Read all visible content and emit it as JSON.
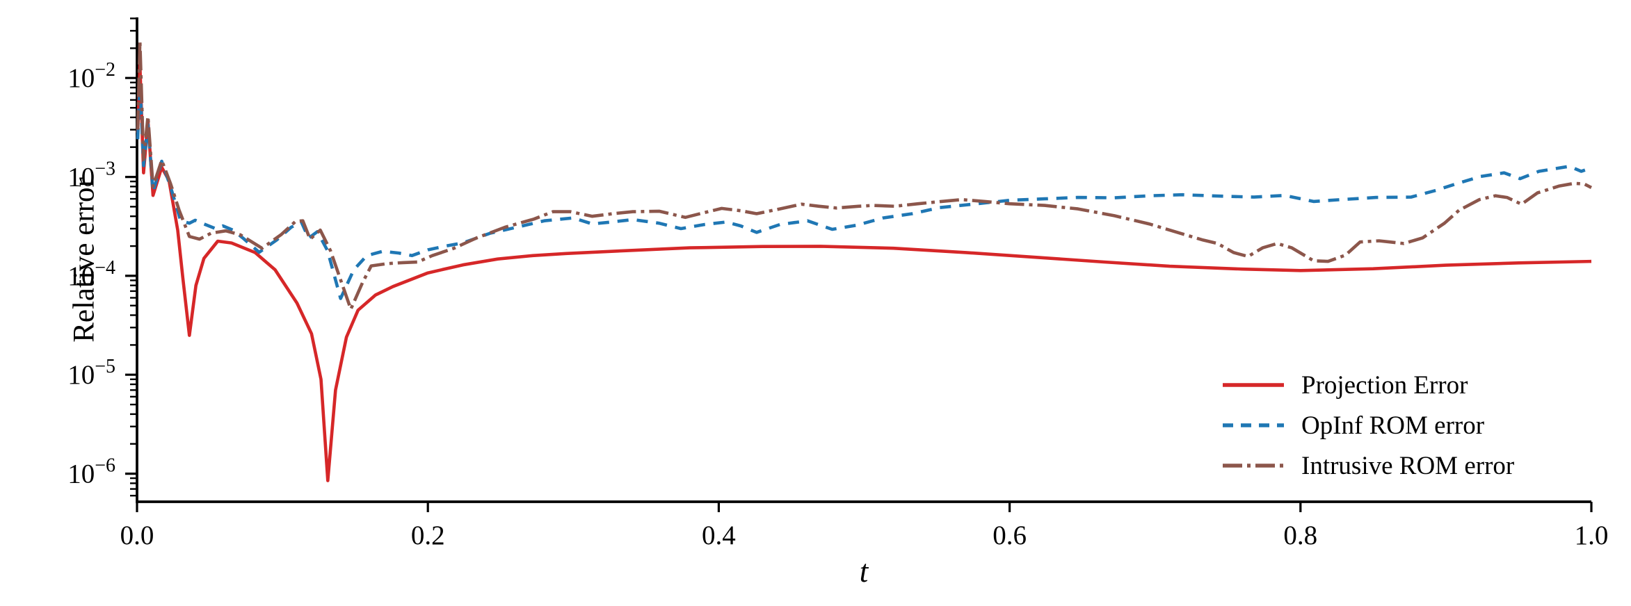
{
  "figure": {
    "background": "#ffffff"
  },
  "chart_data": {
    "type": "line",
    "title": "",
    "xlabel": "t",
    "ylabel": "Relative error",
    "xlim": [
      0.0,
      1.0
    ],
    "ylim": [
      5.2e-07,
      0.041
    ],
    "yscale": "log",
    "grid": false,
    "legend_position": "lower right",
    "x_ticks": [
      {
        "value": 0.0,
        "label": "0.0"
      },
      {
        "value": 0.2,
        "label": "0.2"
      },
      {
        "value": 0.4,
        "label": "0.4"
      },
      {
        "value": 0.6,
        "label": "0.6"
      },
      {
        "value": 0.8,
        "label": "0.8"
      },
      {
        "value": 1.0,
        "label": "1.0"
      }
    ],
    "y_ticks": [
      {
        "value": 0.01,
        "base": "10",
        "exp_label": "−2"
      },
      {
        "value": 0.001,
        "base": "10",
        "exp_label": "−3"
      },
      {
        "value": 0.0001,
        "base": "10",
        "exp_label": "−4"
      },
      {
        "value": 1e-05,
        "base": "10",
        "exp_label": "−5"
      },
      {
        "value": 1e-06,
        "base": "10",
        "exp_label": "−6"
      }
    ],
    "series": [
      {
        "name": "Projection Error",
        "color": "#d62728",
        "style": "solid",
        "points": [
          [
            0.0005,
            0.0028
          ],
          [
            0.002,
            0.0135
          ],
          [
            0.0045,
            0.0011
          ],
          [
            0.0075,
            0.0037
          ],
          [
            0.011,
            0.00065
          ],
          [
            0.017,
            0.00125
          ],
          [
            0.022,
            0.00092
          ],
          [
            0.028,
            0.00029
          ],
          [
            0.0315,
            9.5e-05
          ],
          [
            0.036,
            2.5e-05
          ],
          [
            0.0405,
            8e-05
          ],
          [
            0.046,
            0.00015
          ],
          [
            0.0555,
            0.000224
          ],
          [
            0.065,
            0.000215
          ],
          [
            0.0812,
            0.000172
          ],
          [
            0.095,
            0.000115
          ],
          [
            0.11,
            5.3e-05
          ],
          [
            0.12,
            2.6e-05
          ],
          [
            0.1265,
            9e-06
          ],
          [
            0.1312,
            8.5e-07
          ],
          [
            0.1365,
            7e-06
          ],
          [
            0.144,
            2.4e-05
          ],
          [
            0.152,
            4.5e-05
          ],
          [
            0.164,
            6.4e-05
          ],
          [
            0.176,
            7.8e-05
          ],
          [
            0.2,
            0.000107
          ],
          [
            0.224,
            0.000129
          ],
          [
            0.248,
            0.000148
          ],
          [
            0.272,
            0.00016
          ],
          [
            0.295,
            0.000168
          ],
          [
            0.33,
            0.000178
          ],
          [
            0.38,
            0.000192
          ],
          [
            0.43,
            0.000198
          ],
          [
            0.47,
            0.000199
          ],
          [
            0.52,
            0.00019
          ],
          [
            0.57,
            0.000172
          ],
          [
            0.615,
            0.000155
          ],
          [
            0.665,
            0.000138
          ],
          [
            0.71,
            0.000125
          ],
          [
            0.76,
            0.000117
          ],
          [
            0.8,
            0.000113
          ],
          [
            0.85,
            0.000118
          ],
          [
            0.9,
            0.000128
          ],
          [
            0.95,
            0.000135
          ],
          [
            1.0,
            0.00014
          ]
        ]
      },
      {
        "name": "OpInf ROM error",
        "color": "#1f77b4",
        "style": "dashed",
        "points": [
          [
            0.0005,
            0.0024
          ],
          [
            0.002,
            0.009
          ],
          [
            0.0045,
            0.0013
          ],
          [
            0.0075,
            0.0034
          ],
          [
            0.011,
            0.0007
          ],
          [
            0.017,
            0.00144
          ],
          [
            0.023,
            0.0008
          ],
          [
            0.03,
            0.00036
          ],
          [
            0.036,
            0.00034
          ],
          [
            0.04,
            0.000365
          ],
          [
            0.047,
            0.00033
          ],
          [
            0.054,
            0.0003
          ],
          [
            0.059,
            0.00032
          ],
          [
            0.066,
            0.00029
          ],
          [
            0.073,
            0.00024
          ],
          [
            0.084,
            0.000173
          ],
          [
            0.096,
            0.00023
          ],
          [
            0.106,
            0.00031
          ],
          [
            0.113,
            0.00035
          ],
          [
            0.118,
            0.00024
          ],
          [
            0.124,
            0.00028
          ],
          [
            0.131,
            0.00018
          ],
          [
            0.14,
            5.9e-05
          ],
          [
            0.149,
            0.000115
          ],
          [
            0.158,
            0.00016
          ],
          [
            0.169,
            0.000177
          ],
          [
            0.18,
            0.00017
          ],
          [
            0.189,
            0.00016
          ],
          [
            0.2,
            0.000183
          ],
          [
            0.212,
            0.0002
          ],
          [
            0.224,
            0.000215
          ],
          [
            0.243,
            0.00027
          ],
          [
            0.261,
            0.00031
          ],
          [
            0.28,
            0.00036
          ],
          [
            0.3,
            0.000385
          ],
          [
            0.313,
            0.000335
          ],
          [
            0.326,
            0.00035
          ],
          [
            0.341,
            0.00037
          ],
          [
            0.359,
            0.00034
          ],
          [
            0.374,
            0.0003
          ],
          [
            0.39,
            0.00033
          ],
          [
            0.405,
            0.00035
          ],
          [
            0.415,
            0.00032
          ],
          [
            0.426,
            0.000275
          ],
          [
            0.442,
            0.00033
          ],
          [
            0.461,
            0.00036
          ],
          [
            0.478,
            0.000295
          ],
          [
            0.495,
            0.000325
          ],
          [
            0.513,
            0.000385
          ],
          [
            0.533,
            0.000425
          ],
          [
            0.552,
            0.00049
          ],
          [
            0.575,
            0.00053
          ],
          [
            0.6,
            0.00058
          ],
          [
            0.624,
            0.0006
          ],
          [
            0.647,
            0.00062
          ],
          [
            0.672,
            0.000615
          ],
          [
            0.696,
            0.000645
          ],
          [
            0.719,
            0.00066
          ],
          [
            0.743,
            0.00064
          ],
          [
            0.768,
            0.000625
          ],
          [
            0.789,
            0.00065
          ],
          [
            0.809,
            0.000565
          ],
          [
            0.828,
            0.00059
          ],
          [
            0.852,
            0.00062
          ],
          [
            0.876,
            0.000625
          ],
          [
            0.893,
            0.00073
          ],
          [
            0.908,
            0.00086
          ],
          [
            0.924,
            0.00101
          ],
          [
            0.94,
            0.0011
          ],
          [
            0.951,
            0.00096
          ],
          [
            0.964,
            0.00114
          ],
          [
            0.985,
            0.00128
          ],
          [
            0.993,
            0.00114
          ],
          [
            1.0,
            0.00123
          ]
        ]
      },
      {
        "name": "Intrusive ROM error",
        "color": "#8c564b",
        "style": "dashdot",
        "points": [
          [
            0.0005,
            0.003
          ],
          [
            0.002,
            0.0235
          ],
          [
            0.0045,
            0.0015
          ],
          [
            0.0075,
            0.0041
          ],
          [
            0.011,
            0.0008
          ],
          [
            0.017,
            0.00147
          ],
          [
            0.023,
            0.00086
          ],
          [
            0.029,
            0.00046
          ],
          [
            0.036,
            0.00025
          ],
          [
            0.043,
            0.000235
          ],
          [
            0.051,
            0.00027
          ],
          [
            0.061,
            0.000285
          ],
          [
            0.071,
            0.00026
          ],
          [
            0.086,
            0.00019
          ],
          [
            0.099,
            0.00026
          ],
          [
            0.109,
            0.000355
          ],
          [
            0.114,
            0.00036
          ],
          [
            0.119,
            0.000235
          ],
          [
            0.126,
            0.00029
          ],
          [
            0.133,
            0.00018
          ],
          [
            0.147,
            4.6e-05
          ],
          [
            0.155,
            8.5e-05
          ],
          [
            0.161,
            0.000126
          ],
          [
            0.172,
            0.000133
          ],
          [
            0.183,
            0.000136
          ],
          [
            0.193,
            0.000138
          ],
          [
            0.203,
            0.00016
          ],
          [
            0.218,
            0.00019
          ],
          [
            0.233,
            0.00024
          ],
          [
            0.253,
            0.00031
          ],
          [
            0.273,
            0.000375
          ],
          [
            0.286,
            0.000445
          ],
          [
            0.298,
            0.000445
          ],
          [
            0.313,
            0.0004
          ],
          [
            0.327,
            0.000425
          ],
          [
            0.341,
            0.000445
          ],
          [
            0.359,
            0.00045
          ],
          [
            0.377,
            0.00039
          ],
          [
            0.39,
            0.000435
          ],
          [
            0.402,
            0.00048
          ],
          [
            0.415,
            0.000455
          ],
          [
            0.426,
            0.000425
          ],
          [
            0.442,
            0.000475
          ],
          [
            0.457,
            0.00053
          ],
          [
            0.469,
            0.000505
          ],
          [
            0.481,
            0.000485
          ],
          [
            0.496,
            0.000505
          ],
          [
            0.506,
            0.000515
          ],
          [
            0.521,
            0.000505
          ],
          [
            0.537,
            0.000535
          ],
          [
            0.553,
            0.000565
          ],
          [
            0.567,
            0.00059
          ],
          [
            0.583,
            0.000565
          ],
          [
            0.6,
            0.000535
          ],
          [
            0.624,
            0.000515
          ],
          [
            0.647,
            0.000475
          ],
          [
            0.672,
            0.000405
          ],
          [
            0.696,
            0.000335
          ],
          [
            0.719,
            0.000265
          ],
          [
            0.733,
            0.00023
          ],
          [
            0.743,
            0.000212
          ],
          [
            0.754,
            0.000172
          ],
          [
            0.764,
            0.000157
          ],
          [
            0.774,
            0.000192
          ],
          [
            0.784,
            0.000212
          ],
          [
            0.794,
            0.000192
          ],
          [
            0.809,
            0.000142
          ],
          [
            0.819,
            0.00014
          ],
          [
            0.831,
            0.000162
          ],
          [
            0.841,
            0.00022
          ],
          [
            0.854,
            0.000226
          ],
          [
            0.871,
            0.000212
          ],
          [
            0.884,
            0.000242
          ],
          [
            0.899,
            0.00034
          ],
          [
            0.909,
            0.00046
          ],
          [
            0.923,
            0.00059
          ],
          [
            0.934,
            0.000645
          ],
          [
            0.942,
            0.00062
          ],
          [
            0.952,
            0.00053
          ],
          [
            0.963,
            0.00069
          ],
          [
            0.978,
            0.00081
          ],
          [
            0.988,
            0.00086
          ],
          [
            0.995,
            0.00085
          ],
          [
            1.0,
            0.00078
          ]
        ]
      }
    ]
  },
  "legend": {
    "entries": [
      {
        "series": 0
      },
      {
        "series": 1
      },
      {
        "series": 2
      }
    ]
  }
}
